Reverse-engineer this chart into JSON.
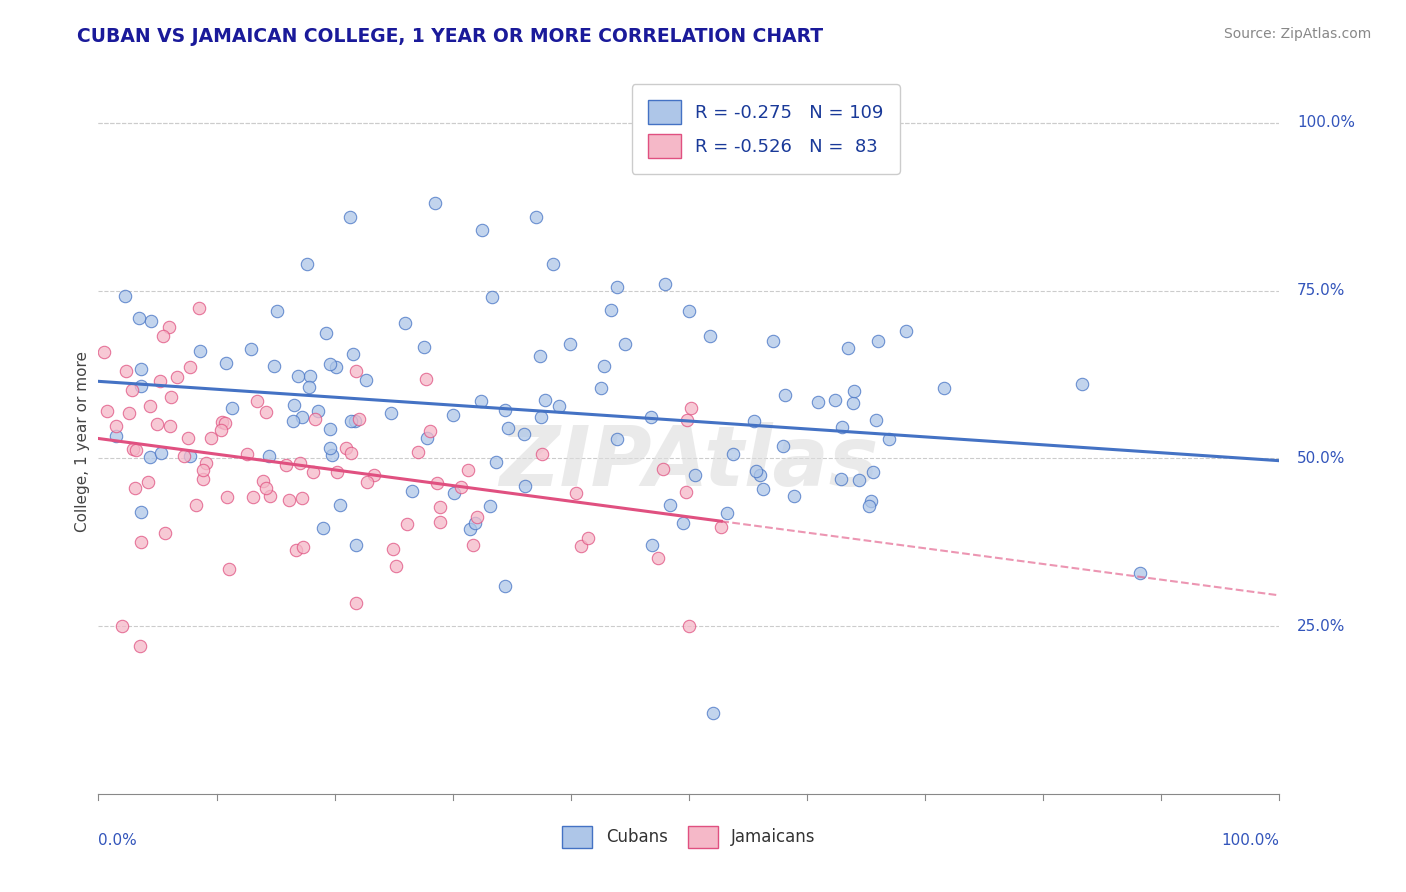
{
  "title": "CUBAN VS JAMAICAN COLLEGE, 1 YEAR OR MORE CORRELATION CHART",
  "source_text": "Source: ZipAtlas.com",
  "ylabel": "College, 1 year or more",
  "right_yticks": [
    "100.0%",
    "75.0%",
    "50.0%",
    "25.0%"
  ],
  "right_ytick_vals": [
    1.0,
    0.75,
    0.5,
    0.25
  ],
  "cubans_R": -0.275,
  "cubans_N": 109,
  "jamaicans_R": -0.526,
  "jamaicans_N": 83,
  "cubans_color": "#aec6e8",
  "jamaicans_color": "#f5b8c8",
  "cubans_line_color": "#4472c4",
  "jamaicans_line_color": "#e05080",
  "xlim": [
    0.0,
    1.0
  ],
  "ylim": [
    0.0,
    1.05
  ],
  "watermark": "ZIPAtlas",
  "background_color": "#ffffff",
  "grid_color": "#cccccc"
}
